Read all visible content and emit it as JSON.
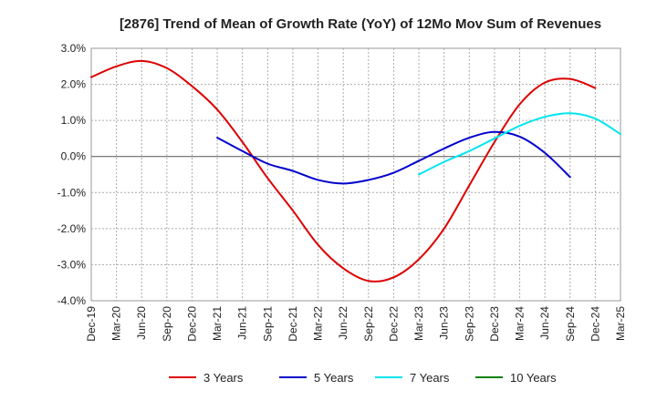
{
  "chart_data": {
    "type": "line",
    "title": "[2876]  Trend of Mean of Growth Rate (YoY) of 12Mo Mov Sum of Revenues",
    "xlabel": "",
    "ylabel": "",
    "ylim": [
      -4.0,
      3.0
    ],
    "y_ticks": [
      3.0,
      2.0,
      1.0,
      0.0,
      -1.0,
      -2.0,
      -3.0,
      -4.0
    ],
    "y_tick_labels": [
      "3.0%",
      "2.0%",
      "1.0%",
      "0.0%",
      "-1.0%",
      "-2.0%",
      "-3.0%",
      "-4.0%"
    ],
    "x_tick_labels": [
      "Dec-19",
      "Mar-20",
      "Jun-20",
      "Sep-20",
      "Dec-20",
      "Mar-21",
      "Jun-21",
      "Sep-21",
      "Dec-21",
      "Mar-22",
      "Jun-22",
      "Sep-22",
      "Dec-22",
      "Mar-23",
      "Jun-23",
      "Sep-23",
      "Dec-23",
      "Mar-24",
      "Jun-24",
      "Sep-24",
      "Dec-24",
      "Mar-25"
    ],
    "grid": true,
    "legend_position": "bottom",
    "series": [
      {
        "name": "3 Years",
        "color": "#dd0000",
        "start_index": 0,
        "values": [
          2.2,
          2.5,
          2.65,
          2.45,
          1.95,
          1.3,
          0.4,
          -0.6,
          -1.5,
          -2.45,
          -3.1,
          -3.45,
          -3.35,
          -2.85,
          -2.0,
          -0.8,
          0.4,
          1.45,
          2.05,
          2.15,
          1.9
        ]
      },
      {
        "name": "5 Years",
        "color": "#0000cc",
        "start_index": 5,
        "values": [
          0.52,
          0.15,
          -0.2,
          -0.4,
          -0.65,
          -0.75,
          -0.65,
          -0.45,
          -0.12,
          0.22,
          0.52,
          0.68,
          0.55,
          0.1,
          -0.57
        ]
      },
      {
        "name": "7 Years",
        "color": "#00e5ee",
        "start_index": 13,
        "values": [
          -0.5,
          -0.15,
          0.15,
          0.5,
          0.85,
          1.1,
          1.2,
          1.05,
          0.62
        ]
      },
      {
        "name": "10 Years",
        "color": "#008000",
        "start_index": 0,
        "values": []
      }
    ]
  }
}
